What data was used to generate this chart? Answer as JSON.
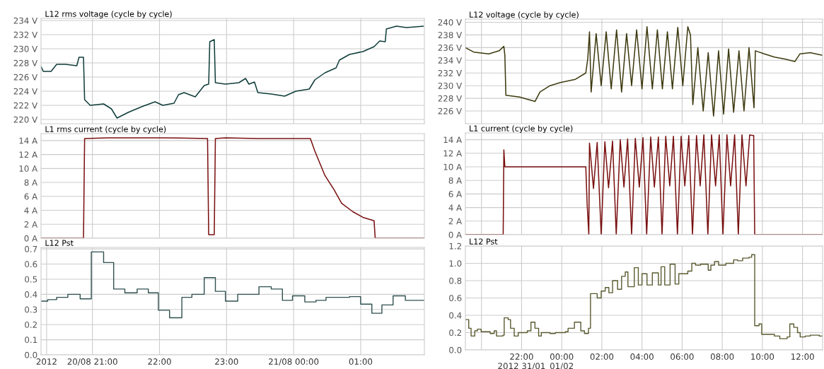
{
  "chart_data": [
    {
      "type": "line",
      "title": "L12 rms voltage (cycle by cycle)",
      "grid": true,
      "tick_labels": "y",
      "xlim": [
        "2012-08-20T20:14",
        "2012-08-21T01:57"
      ],
      "ylim": [
        219.4,
        234.3
      ],
      "xticks": [
        {
          "value": "2012-08-20T21:00",
          "label": null
        },
        {
          "value": "2012-08-20T22:00",
          "label": null
        },
        {
          "value": "2012-08-20T23:00",
          "label": null
        },
        {
          "value": "2012-08-21T00:00",
          "label": null
        },
        {
          "value": "2012-08-21T01:00",
          "label": null
        }
      ],
      "yticks": [
        {
          "value": 220,
          "label": "220 V"
        },
        {
          "value": 222,
          "label": "222 V"
        },
        {
          "value": 224,
          "label": "224 V"
        },
        {
          "value": 226,
          "label": "226 V"
        },
        {
          "value": 228,
          "label": "228 V"
        },
        {
          "value": 230,
          "label": "230 V"
        },
        {
          "value": 232,
          "label": "232 V"
        },
        {
          "value": 234,
          "label": "234 V"
        }
      ],
      "series": [
        {
          "color": "#0f3d3a",
          "x": [
            "2012-08-20T20:14",
            "2012-08-20T20:16",
            "2012-08-20T20:23",
            "2012-08-20T20:28",
            "2012-08-20T20:36",
            "2012-08-20T20:46",
            "2012-08-20T20:48",
            "2012-08-20T20:52",
            "2012-08-20T20:53",
            "2012-08-20T20:58",
            "2012-08-20T21:10",
            "2012-08-20T21:17",
            "2012-08-20T21:22",
            "2012-08-20T21:32",
            "2012-08-20T21:44",
            "2012-08-20T21:56",
            "2012-08-20T22:03",
            "2012-08-20T22:13",
            "2012-08-20T22:17",
            "2012-08-20T22:22",
            "2012-08-20T22:32",
            "2012-08-20T22:40",
            "2012-08-20T22:44",
            "2012-08-20T22:45",
            "2012-08-20T22:49",
            "2012-08-20T22:50",
            "2012-08-20T22:59",
            "2012-08-20T23:11",
            "2012-08-20T23:17",
            "2012-08-20T23:20",
            "2012-08-20T23:25",
            "2012-08-20T23:28",
            "2012-08-20T23:40",
            "2012-08-20T23:52",
            "2012-08-21T00:02",
            "2012-08-21T00:14",
            "2012-08-21T00:19",
            "2012-08-21T00:28",
            "2012-08-21T00:38",
            "2012-08-21T00:41",
            "2012-08-21T00:50",
            "2012-08-21T01:02",
            "2012-08-21T01:12",
            "2012-08-21T01:17",
            "2012-08-21T01:22",
            "2012-08-21T01:23",
            "2012-08-21T01:32",
            "2012-08-21T01:41",
            "2012-08-21T01:56"
          ],
          "values": [
            227.5,
            226.8,
            226.8,
            227.8,
            227.8,
            227.6,
            228.8,
            228.8,
            222.8,
            222.0,
            222.2,
            221.5,
            220.2,
            221.0,
            221.8,
            222.5,
            222.0,
            222.3,
            223.5,
            223.8,
            223.2,
            224.8,
            225.0,
            231.0,
            231.3,
            225.2,
            225.0,
            225.2,
            225.8,
            225.0,
            225.3,
            223.8,
            223.6,
            223.3,
            224.0,
            224.3,
            225.6,
            226.6,
            227.3,
            228.4,
            229.2,
            229.6,
            230.3,
            231.1,
            231.0,
            232.8,
            233.2,
            233.0,
            233.2
          ]
        }
      ]
    },
    {
      "type": "line",
      "title": "L1 rms current (cycle by cycle)",
      "grid": true,
      "tick_labels": "y",
      "xlim": [
        "2012-08-20T20:14",
        "2012-08-21T01:57"
      ],
      "ylim": [
        0,
        15
      ],
      "xticks": [
        {
          "value": "2012-08-20T21:00",
          "label": null
        },
        {
          "value": "2012-08-20T22:00",
          "label": null
        },
        {
          "value": "2012-08-20T23:00",
          "label": null
        },
        {
          "value": "2012-08-21T00:00",
          "label": null
        },
        {
          "value": "2012-08-21T01:00",
          "label": null
        }
      ],
      "yticks": [
        {
          "value": 0,
          "label": "0 A"
        },
        {
          "value": 2,
          "label": "2 A"
        },
        {
          "value": 4,
          "label": "4 A"
        },
        {
          "value": 6,
          "label": "6 A"
        },
        {
          "value": 8,
          "label": "8 A"
        },
        {
          "value": 10,
          "label": "10 A"
        },
        {
          "value": 12,
          "label": "12 A"
        },
        {
          "value": 14,
          "label": "14 A"
        }
      ],
      "series": [
        {
          "color": "#7a1010",
          "x": [
            "2012-08-20T20:14",
            "2012-08-20T20:52",
            "2012-08-20T20:53",
            "2012-08-20T21:14",
            "2012-08-20T22:03",
            "2012-08-20T22:43",
            "2012-08-20T22:44",
            "2012-08-20T22:49",
            "2012-08-20T22:50",
            "2012-08-20T22:59",
            "2012-08-20T23:28",
            "2012-08-21T00:15",
            "2012-08-21T00:19",
            "2012-08-21T00:28",
            "2012-08-21T00:36",
            "2012-08-21T00:43",
            "2012-08-21T00:53",
            "2012-08-21T01:02",
            "2012-08-21T01:12",
            "2012-08-21T01:13",
            "2012-08-21T01:57"
          ],
          "values": [
            0,
            0,
            14.3,
            14.4,
            14.4,
            14.3,
            0.5,
            0.5,
            14.3,
            14.4,
            14.3,
            14.3,
            12.5,
            9,
            7,
            5,
            3.8,
            3.0,
            2.5,
            0,
            0
          ]
        }
      ]
    },
    {
      "type": "step",
      "title": "L12 Pst",
      "grid": true,
      "xlim": [
        "2012-08-20T20:14",
        "2012-08-21T01:57"
      ],
      "ylim": [
        0,
        0.71
      ],
      "xticks": [
        {
          "value": "2012-08-20T20:19",
          "label": "2012"
        },
        {
          "value": "2012-08-20T21:00",
          "label": "20/08 21:00"
        },
        {
          "value": "2012-08-20T22:00",
          "label": "22:00"
        },
        {
          "value": "2012-08-20T23:00",
          "label": "23:00"
        },
        {
          "value": "2012-08-21T00:00",
          "label": "21/08 00:00"
        },
        {
          "value": "2012-08-21T01:00",
          "label": "01:00"
        }
      ],
      "yticks": [
        {
          "value": 0,
          "label": "0.0"
        },
        0.1,
        0.2,
        0.3,
        0.4,
        0.5,
        0.6,
        0.7
      ],
      "series": [
        {
          "color": "#2f4f4f",
          "x": [
            "2012-08-20T20:14",
            "2012-08-20T20:20",
            "2012-08-20T20:28",
            "2012-08-20T20:38",
            "2012-08-20T20:49",
            "2012-08-20T20:59",
            "2012-08-20T21:10",
            "2012-08-20T21:19",
            "2012-08-20T21:29",
            "2012-08-20T21:40",
            "2012-08-20T21:50",
            "2012-08-20T21:59",
            "2012-08-20T22:09",
            "2012-08-20T22:20",
            "2012-08-20T22:29",
            "2012-08-20T22:40",
            "2012-08-20T22:50",
            "2012-08-20T22:59",
            "2012-08-20T23:10",
            "2012-08-20T23:29",
            "2012-08-20T23:40",
            "2012-08-20T23:50",
            "2012-08-20T23:59",
            "2012-08-21T00:10",
            "2012-08-21T00:20",
            "2012-08-21T00:29",
            "2012-08-21T00:50",
            "2012-08-21T01:00",
            "2012-08-21T01:10",
            "2012-08-21T01:19",
            "2012-08-21T01:29",
            "2012-08-21T01:40",
            "2012-08-21T01:57"
          ],
          "values": [
            0.355,
            0.365,
            0.38,
            0.4,
            0.37,
            0.68,
            0.61,
            0.435,
            0.41,
            0.435,
            0.41,
            0.295,
            0.245,
            0.38,
            0.4,
            0.51,
            0.42,
            0.355,
            0.4,
            0.45,
            0.435,
            0.36,
            0.39,
            0.35,
            0.36,
            0.38,
            0.385,
            0.335,
            0.275,
            0.33,
            0.39,
            0.36,
            0.36
          ]
        }
      ]
    },
    {
      "type": "line",
      "title": "L12 voltage (cycle by cycle)",
      "grid": true,
      "tick_labels": "y",
      "xlim": [
        "2012-01-31T19:12",
        "2012-02-01T13:00"
      ],
      "ylim": [
        224,
        240.5
      ],
      "xticks": [
        {
          "value": "2012-01-31T20:00",
          "label": null
        },
        {
          "value": "2012-01-31T22:00",
          "label": null
        },
        {
          "value": "2012-02-01T00:00",
          "label": null
        },
        {
          "value": "2012-02-01T02:00",
          "label": null
        },
        {
          "value": "2012-02-01T04:00",
          "label": null
        },
        {
          "value": "2012-02-01T06:00",
          "label": null
        },
        {
          "value": "2012-02-01T08:00",
          "label": null
        },
        {
          "value": "2012-02-01T10:00",
          "label": null
        },
        {
          "value": "2012-02-01T12:00",
          "label": null
        }
      ],
      "yticks": [
        {
          "value": 226,
          "label": "226 V"
        },
        {
          "value": 228,
          "label": "228 V"
        },
        {
          "value": 230,
          "label": "230 V"
        },
        {
          "value": 232,
          "label": "232 V"
        },
        {
          "value": 234,
          "label": "234 V"
        },
        {
          "value": 236,
          "label": "236 V"
        },
        {
          "value": 238,
          "label": "238 V"
        },
        {
          "value": 240,
          "label": "240 V"
        }
      ],
      "series": [
        {
          "color": "#3d3a10",
          "x": [
            "2012-01-31T19:12",
            "2012-01-31T19:37",
            "2012-01-31T20:22",
            "2012-01-31T20:53",
            "2012-01-31T21:07",
            "2012-01-31T21:10",
            "2012-01-31T21:13",
            "2012-01-31T21:54",
            "2012-01-31T22:40",
            "2012-01-31T22:55",
            "2012-01-31T23:25",
            "2012-01-31T23:56",
            "2012-02-01T00:41",
            "2012-02-01T01:12",
            "2012-02-01T01:18",
            "2012-02-01T01:23",
            "2012-02-01T01:28",
            "2012-02-01T01:43",
            "2012-02-01T01:58",
            "2012-02-01T02:13",
            "2012-02-01T02:28",
            "2012-02-01T02:44",
            "2012-02-01T02:59",
            "2012-02-01T03:14",
            "2012-02-01T03:29",
            "2012-02-01T03:44",
            "2012-02-01T04:00",
            "2012-02-01T04:15",
            "2012-02-01T04:31",
            "2012-02-01T04:46",
            "2012-02-01T05:01",
            "2012-02-01T05:16",
            "2012-02-01T05:31",
            "2012-02-01T05:47",
            "2012-02-01T06:02",
            "2012-02-01T06:17",
            "2012-02-01T06:25",
            "2012-02-01T06:32",
            "2012-02-01T06:47",
            "2012-02-01T07:03",
            "2012-02-01T07:18",
            "2012-02-01T07:34",
            "2012-02-01T07:49",
            "2012-02-01T08:04",
            "2012-02-01T08:19",
            "2012-02-01T08:34",
            "2012-02-01T08:50",
            "2012-02-01T09:05",
            "2012-02-01T09:20",
            "2012-02-01T09:35",
            "2012-02-01T09:39",
            "2012-02-01T10:06",
            "2012-02-01T10:36",
            "2012-02-01T11:07",
            "2012-02-01T11:37",
            "2012-02-01T11:52",
            "2012-02-01T12:23",
            "2012-02-01T12:59"
          ],
          "values": [
            236.0,
            235.3,
            235.0,
            235.5,
            236.2,
            234.8,
            228.5,
            228.2,
            227.5,
            229.0,
            230.0,
            230.5,
            231.0,
            232.0,
            234.3,
            238.5,
            229.0,
            238.2,
            230.0,
            238.5,
            229.5,
            238.8,
            229.0,
            238.2,
            230.0,
            238.8,
            229.5,
            239.3,
            229.5,
            238.8,
            229.5,
            238.5,
            229.5,
            239.2,
            230.0,
            239.3,
            238.0,
            227.0,
            236.0,
            226.0,
            235.2,
            225.2,
            235.5,
            225.5,
            235.8,
            225.8,
            235.5,
            226.0,
            236.0,
            226.5,
            235.5,
            235.0,
            234.5,
            234.2,
            233.8,
            235.0,
            235.2,
            234.8
          ]
        }
      ]
    },
    {
      "type": "line",
      "title": "L1 current (cycle by cycle)",
      "grid": true,
      "tick_labels": "y",
      "xlim": [
        "2012-01-31T19:12",
        "2012-02-01T13:00"
      ],
      "ylim": [
        0,
        15
      ],
      "xticks": [
        {
          "value": "2012-01-31T20:00",
          "label": null
        },
        {
          "value": "2012-01-31T22:00",
          "label": null
        },
        {
          "value": "2012-02-01T00:00",
          "label": null
        },
        {
          "value": "2012-02-01T02:00",
          "label": null
        },
        {
          "value": "2012-02-01T04:00",
          "label": null
        },
        {
          "value": "2012-02-01T06:00",
          "label": null
        },
        {
          "value": "2012-02-01T08:00",
          "label": null
        },
        {
          "value": "2012-02-01T10:00",
          "label": null
        },
        {
          "value": "2012-02-01T12:00",
          "label": null
        }
      ],
      "yticks": [
        {
          "value": 0,
          "label": "0 A"
        },
        {
          "value": 2,
          "label": "2 A"
        },
        {
          "value": 4,
          "label": "4 A"
        },
        {
          "value": 6,
          "label": "6 A"
        },
        {
          "value": 8,
          "label": "8 A"
        },
        {
          "value": 10,
          "label": "10 A"
        },
        {
          "value": 12,
          "label": "12 A"
        },
        {
          "value": 14,
          "label": "14 A"
        }
      ],
      "series": [
        {
          "color": "#7a1010",
          "x": [
            "2012-01-31T19:12",
            "2012-01-31T21:05",
            "2012-01-31T21:07",
            "2012-01-31T21:10",
            "2012-02-01T01:12",
            "2012-02-01T01:16",
            "2012-02-01T01:21",
            "2012-02-01T01:23",
            "2012-02-01T01:35",
            "2012-02-01T01:46",
            "2012-02-01T01:58",
            "2012-02-01T02:09",
            "2012-02-01T02:20",
            "2012-02-01T02:32",
            "2012-02-01T02:43",
            "2012-02-01T02:55",
            "2012-02-01T03:06",
            "2012-02-01T03:17",
            "2012-02-01T03:29",
            "2012-02-01T03:40",
            "2012-02-01T03:52",
            "2012-02-01T04:03",
            "2012-02-01T04:14",
            "2012-02-01T04:26",
            "2012-02-01T04:37",
            "2012-02-01T04:49",
            "2012-02-01T05:00",
            "2012-02-01T05:11",
            "2012-02-01T05:23",
            "2012-02-01T05:34",
            "2012-02-01T05:46",
            "2012-02-01T05:57",
            "2012-02-01T06:08",
            "2012-02-01T06:20",
            "2012-02-01T06:31",
            "2012-02-01T06:43",
            "2012-02-01T06:54",
            "2012-02-01T07:05",
            "2012-02-01T07:17",
            "2012-02-01T07:28",
            "2012-02-01T07:40",
            "2012-02-01T07:51",
            "2012-02-01T08:02",
            "2012-02-01T08:14",
            "2012-02-01T08:25",
            "2012-02-01T08:37",
            "2012-02-01T08:48",
            "2012-02-01T08:59",
            "2012-02-01T09:11",
            "2012-02-01T09:22",
            "2012-02-01T09:34",
            "2012-02-01T09:37",
            "2012-02-01T13:00"
          ],
          "values": [
            0,
            0,
            12.5,
            10,
            10,
            4.5,
            0,
            13.5,
            6.8,
            13.6,
            0,
            13.7,
            6.9,
            13.8,
            0,
            14.0,
            7.0,
            14.1,
            0,
            14.2,
            7.0,
            14.3,
            0,
            14.4,
            7.0,
            14.4,
            0,
            14.5,
            7.2,
            14.5,
            0,
            14.5,
            7.2,
            14.6,
            0,
            14.6,
            7.2,
            14.7,
            0,
            14.7,
            7.2,
            14.7,
            0,
            14.7,
            7.2,
            14.7,
            0,
            14.7,
            7.2,
            14.7,
            14.6,
            0,
            0
          ]
        }
      ]
    },
    {
      "type": "step",
      "title": "L12 Pst",
      "grid": true,
      "xlim": [
        "2012-01-31T19:12",
        "2012-02-01T13:00"
      ],
      "ylim": [
        0,
        1.2
      ],
      "xticks": [
        {
          "value": "2012-01-31T20:00",
          "label": null
        },
        {
          "value": "2012-01-31T22:00",
          "label": "22:00\n2012 31/01"
        },
        {
          "value": "2012-02-01T00:00",
          "label": "00:00\n01/02"
        },
        {
          "value": "2012-02-01T02:00",
          "label": "02:00"
        },
        {
          "value": "2012-02-01T04:00",
          "label": "04:00"
        },
        {
          "value": "2012-02-01T06:00",
          "label": "06:00"
        },
        {
          "value": "2012-02-01T08:00",
          "label": "08:00"
        },
        {
          "value": "2012-02-01T10:00",
          "label": "10:00"
        },
        {
          "value": "2012-02-01T12:00",
          "label": "12:00"
        }
      ],
      "yticks": [
        {
          "value": 0,
          "label": "0.0"
        },
        0.2,
        0.4,
        0.6,
        0.8,
        {
          "value": 1,
          "label": "1.0"
        },
        1.2
      ],
      "series": [
        {
          "color": "#5a5a30",
          "x": [
            "2012-01-31T19:12",
            "2012-01-31T19:22",
            "2012-01-31T19:29",
            "2012-01-31T19:40",
            "2012-01-31T19:48",
            "2012-01-31T19:59",
            "2012-01-31T20:26",
            "2012-01-31T20:38",
            "2012-01-31T20:45",
            "2012-01-31T21:04",
            "2012-01-31T21:08",
            "2012-01-31T21:20",
            "2012-01-31T21:27",
            "2012-01-31T21:38",
            "2012-01-31T21:50",
            "2012-01-31T22:17",
            "2012-01-31T22:28",
            "2012-01-31T22:40",
            "2012-01-31T22:51",
            "2012-01-31T22:59",
            "2012-01-31T23:25",
            "2012-01-31T23:41",
            "2012-02-01T00:11",
            "2012-02-01T00:19",
            "2012-02-01T00:38",
            "2012-02-01T00:57",
            "2012-02-01T01:08",
            "2012-02-01T01:20",
            "2012-02-01T01:26",
            "2012-02-01T01:46",
            "2012-02-01T01:58",
            "2012-02-01T02:10",
            "2012-02-01T02:21",
            "2012-02-01T02:32",
            "2012-02-01T02:47",
            "2012-02-01T02:59",
            "2012-02-01T03:10",
            "2012-02-01T03:18",
            "2012-02-01T03:37",
            "2012-02-01T03:49",
            "2012-02-01T04:00",
            "2012-02-01T04:15",
            "2012-02-01T04:31",
            "2012-02-01T04:49",
            "2012-02-01T04:57",
            "2012-02-01T05:08",
            "2012-02-01T05:24",
            "2012-02-01T05:39",
            "2012-02-01T05:50",
            "2012-02-01T06:17",
            "2012-02-01T06:29",
            "2012-02-01T06:40",
            "2012-02-01T06:55",
            "2012-02-01T07:18",
            "2012-02-01T07:26",
            "2012-02-01T07:37",
            "2012-02-01T07:49",
            "2012-02-01T08:11",
            "2012-02-01T08:34",
            "2012-02-01T08:46",
            "2012-02-01T09:01",
            "2012-02-01T09:20",
            "2012-02-01T09:28",
            "2012-02-01T09:37",
            "2012-02-01T09:50",
            "2012-02-01T09:58",
            "2012-02-01T10:21",
            "2012-02-01T10:36",
            "2012-02-01T10:52",
            "2012-02-01T11:14",
            "2012-02-01T11:22",
            "2012-02-01T11:34",
            "2012-02-01T11:45",
            "2012-02-01T11:53",
            "2012-02-01T12:08",
            "2012-02-01T12:23",
            "2012-02-01T12:50",
            "2012-02-01T12:59"
          ],
          "values": [
            0.35,
            0.25,
            0.16,
            0.22,
            0.24,
            0.21,
            0.19,
            0.22,
            0.16,
            0.17,
            0.37,
            0.35,
            0.25,
            0.16,
            0.2,
            0.22,
            0.32,
            0.25,
            0.16,
            0.2,
            0.19,
            0.2,
            0.21,
            0.25,
            0.32,
            0.22,
            0.19,
            0.25,
            0.65,
            0.6,
            0.68,
            0.72,
            0.66,
            0.8,
            0.7,
            0.85,
            0.9,
            0.73,
            0.95,
            0.75,
            0.88,
            0.75,
            0.89,
            0.75,
            0.96,
            0.75,
            0.99,
            0.76,
            0.88,
            0.91,
            1.0,
            0.98,
            0.99,
            0.92,
            0.98,
            1.02,
            0.98,
            1.0,
            1.04,
            1.03,
            1.06,
            1.07,
            1.1,
            0.28,
            0.3,
            0.18,
            0.18,
            0.16,
            0.13,
            0.15,
            0.3,
            0.26,
            0.2,
            0.15,
            0.16,
            0.17,
            0.16,
            0.16
          ]
        }
      ]
    }
  ]
}
